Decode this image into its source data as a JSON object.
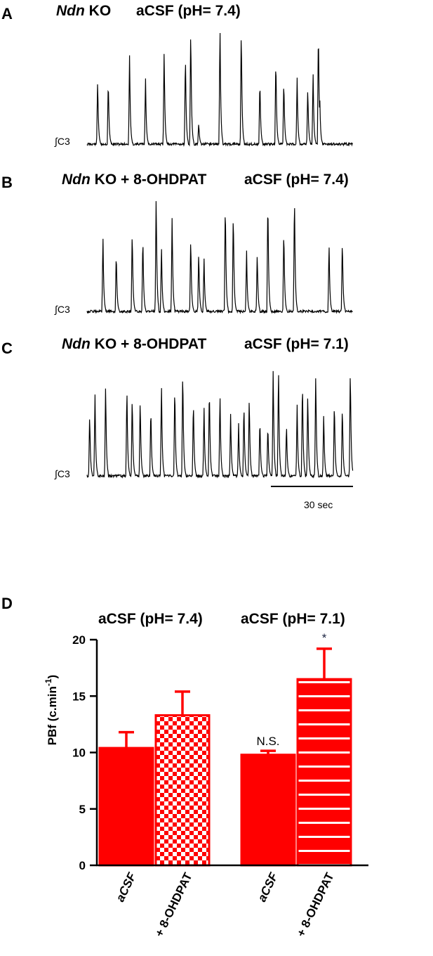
{
  "panels": {
    "A": {
      "label": "A",
      "title_genotype": "Ndn",
      "title_rest": " KO",
      "title_solution": "aCSF (pH= 7.4)",
      "trace_label": "∫C3",
      "peaks": [
        [
          0.04,
          0.55
        ],
        [
          0.08,
          0.55
        ],
        [
          0.16,
          0.75
        ],
        [
          0.22,
          0.55
        ],
        [
          0.29,
          0.8
        ],
        [
          0.37,
          0.76
        ],
        [
          0.39,
          1.0
        ],
        [
          0.42,
          0.18
        ],
        [
          0.5,
          1.0
        ],
        [
          0.58,
          1.0
        ],
        [
          0.65,
          0.55
        ],
        [
          0.71,
          0.74
        ],
        [
          0.74,
          0.55
        ],
        [
          0.79,
          0.55
        ],
        [
          0.83,
          0.48
        ],
        [
          0.85,
          0.6
        ],
        [
          0.87,
          1.0
        ],
        [
          0.875,
          0.42
        ]
      ]
    },
    "B": {
      "label": "B",
      "title_genotype": "Ndn",
      "title_rest": " KO + 8-OHDPAT",
      "title_solution": "aCSF (pH= 7.4)",
      "trace_label": "∫C3",
      "peaks": [
        [
          0.06,
          0.63
        ],
        [
          0.11,
          0.51
        ],
        [
          0.17,
          0.7
        ],
        [
          0.21,
          0.64
        ],
        [
          0.26,
          1.0
        ],
        [
          0.28,
          0.55
        ],
        [
          0.32,
          0.81
        ],
        [
          0.39,
          0.64
        ],
        [
          0.42,
          0.51
        ],
        [
          0.44,
          0.45
        ],
        [
          0.52,
          0.95
        ],
        [
          0.55,
          0.87
        ],
        [
          0.6,
          0.5
        ],
        [
          0.64,
          0.5
        ],
        [
          0.68,
          0.98
        ],
        [
          0.74,
          0.71
        ],
        [
          0.78,
          1.0
        ],
        [
          0.91,
          0.58
        ],
        [
          0.96,
          0.62
        ]
      ]
    },
    "C": {
      "label": "C",
      "title_genotype": "Ndn",
      "title_rest": " KO + 8-OHDPAT",
      "title_solution": "aCSF (pH= 7.1)",
      "trace_label": "∫C3",
      "peaks": [
        [
          0.01,
          0.54
        ],
        [
          0.03,
          0.7
        ],
        [
          0.07,
          0.8
        ],
        [
          0.15,
          0.77
        ],
        [
          0.17,
          0.71
        ],
        [
          0.2,
          0.68
        ],
        [
          0.24,
          0.6
        ],
        [
          0.28,
          0.79
        ],
        [
          0.33,
          0.8
        ],
        [
          0.36,
          0.94
        ],
        [
          0.4,
          0.66
        ],
        [
          0.44,
          0.59
        ],
        [
          0.46,
          0.78
        ],
        [
          0.5,
          0.71
        ],
        [
          0.54,
          0.54
        ],
        [
          0.57,
          0.45
        ],
        [
          0.59,
          0.63
        ],
        [
          0.61,
          0.7
        ],
        [
          0.65,
          0.5
        ],
        [
          0.68,
          0.45
        ],
        [
          0.7,
          0.94
        ],
        [
          0.72,
          0.94
        ],
        [
          0.75,
          0.45
        ],
        [
          0.79,
          0.6
        ],
        [
          0.81,
          0.83
        ],
        [
          0.83,
          0.73
        ],
        [
          0.86,
          0.9
        ],
        [
          0.89,
          0.54
        ],
        [
          0.93,
          0.66
        ],
        [
          0.96,
          0.62
        ],
        [
          0.99,
          0.95
        ]
      ]
    },
    "scale_bar": "30 sec"
  },
  "chart_data": {
    "type": "bar",
    "panel_label": "D",
    "groups": [
      "aCSF (pH= 7.4)",
      "aCSF (pH= 7.1)"
    ],
    "categories": [
      "aCSF",
      "+ 8-OHDPAT",
      "aCSF",
      "+ 8-OHDPAT"
    ],
    "categories_italic": [
      true,
      false,
      true,
      false
    ],
    "values": [
      10.4,
      13.3,
      9.8,
      16.5
    ],
    "errors": [
      1.4,
      2.1,
      0.35,
      2.7
    ],
    "patterns": [
      "solid",
      "checker",
      "solid",
      "stripes"
    ],
    "annotations": [
      "",
      "",
      "N.S.",
      "*"
    ],
    "ylabel": "PBf (c.min",
    "ylabel_sup": "-1",
    "ylabel_end": ")",
    "ylim": [
      0,
      20
    ],
    "yticks": [
      0,
      5,
      10,
      15,
      20
    ],
    "colors": {
      "bar": "#ff0000",
      "text": "#000000"
    }
  }
}
